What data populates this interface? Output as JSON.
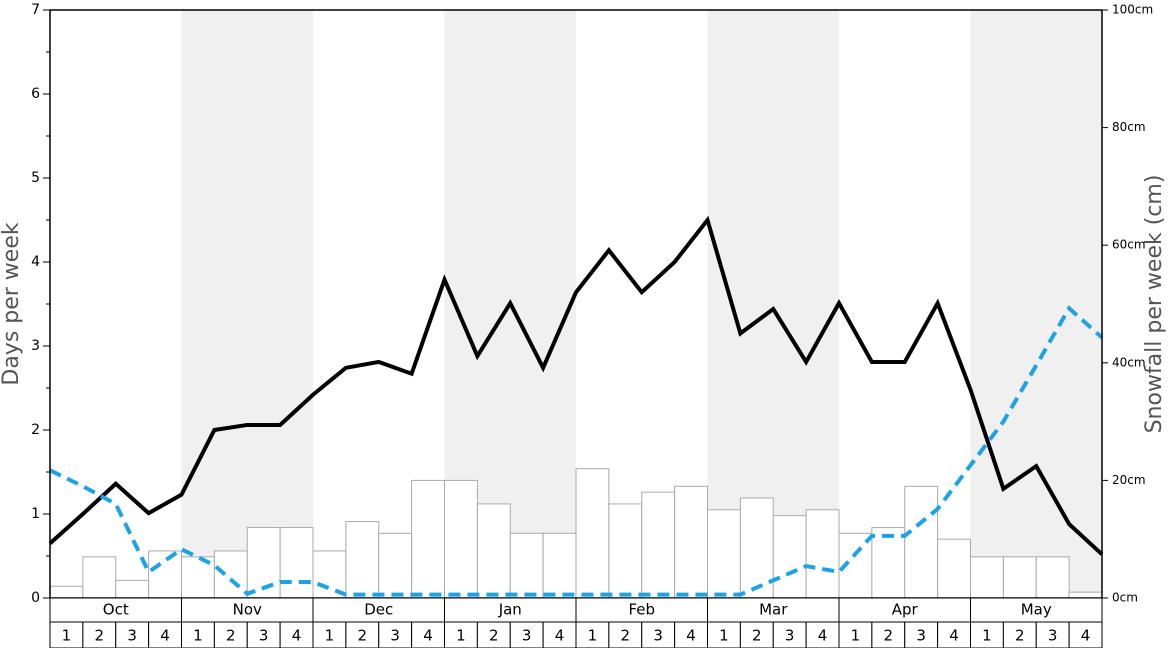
{
  "chart_data": {
    "type": "bar_line",
    "ylabel": "Days per week",
    "y2label": "Snowfall per week (cm)",
    "months": [
      "Oct",
      "Nov",
      "Dec",
      "Jan",
      "Feb",
      "Mar",
      "Apr",
      "May"
    ],
    "weeks": [
      "1",
      "2",
      "3",
      "4"
    ],
    "shaded_months": [
      false,
      true,
      false,
      true,
      false,
      true,
      false,
      true
    ],
    "ylim": [
      0,
      7
    ],
    "yticks": [
      0,
      1,
      2,
      3,
      4,
      5,
      6,
      7
    ],
    "yminorticks": [
      0.5,
      1.5,
      2.5,
      3.5,
      4.5,
      5.5,
      6.5
    ],
    "y2lim": [
      0,
      100
    ],
    "y2ticks": [
      {
        "value": 0,
        "label": "0cm"
      },
      {
        "value": 20,
        "label": "20cm"
      },
      {
        "value": 40,
        "label": "40cm"
      },
      {
        "value": 60,
        "label": "60cm"
      },
      {
        "value": 80,
        "label": "80cm"
      },
      {
        "value": 100,
        "label": "100cm"
      }
    ],
    "bars": {
      "axis": "y2",
      "color": "#ffffff",
      "values": [
        2,
        7,
        3,
        8,
        7,
        8,
        12,
        12,
        8,
        13,
        11,
        20,
        20,
        16,
        11,
        11,
        22,
        16,
        18,
        19,
        15,
        17,
        14,
        15,
        11,
        12,
        19,
        10,
        7,
        7,
        7,
        1
      ]
    },
    "series": [
      {
        "color": "#000000",
        "dash": false,
        "values": [
          0.65,
          1.0,
          1.36,
          1.01,
          1.23,
          2.0,
          2.06,
          2.06,
          2.42,
          2.74,
          2.81,
          2.67,
          3.79,
          2.88,
          3.51,
          2.74,
          3.64,
          4.14,
          3.64,
          4.0,
          4.5,
          3.15,
          3.44,
          2.81,
          3.51,
          2.81,
          2.81,
          3.51,
          2.48,
          1.3,
          1.57,
          0.88,
          0.52
        ]
      },
      {
        "color": "#1aa3e8",
        "dash": true,
        "values": [
          1.52,
          1.33,
          1.12,
          0.31,
          0.58,
          0.39,
          0.05,
          0.19,
          0.19,
          0.04,
          0.04,
          0.04,
          0.04,
          0.04,
          0.04,
          0.04,
          0.04,
          0.04,
          0.04,
          0.04,
          0.04,
          0.04,
          0.21,
          0.38,
          0.31,
          0.74,
          0.74,
          1.06,
          1.58,
          2.1,
          2.77,
          3.45,
          3.1
        ]
      }
    ]
  }
}
